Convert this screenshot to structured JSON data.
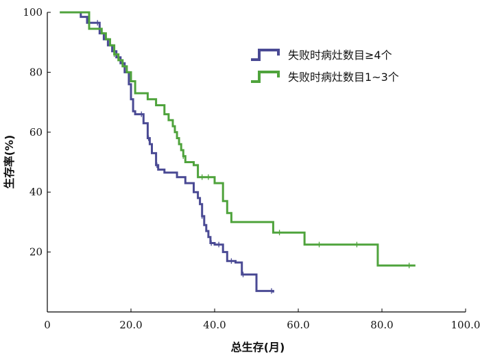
{
  "chart_data": {
    "type": "line",
    "subtype": "kaplan-meier-step",
    "xlabel": "总生存(月)",
    "ylabel": "生存率(%)",
    "xlim": [
      0,
      100
    ],
    "ylim": [
      0,
      100
    ],
    "x_ticks": [
      "0",
      "20.0",
      "40.0",
      "60.0",
      "80.0",
      "100.0"
    ],
    "y_ticks": [
      "20",
      "40",
      "60",
      "80",
      "100"
    ],
    "grid": false,
    "legend_position": "top-right",
    "series": [
      {
        "name": "失败时病灶数目≥4个",
        "color": "#4a4a94",
        "x": [
          3,
          8,
          9.5,
          12.5,
          13.5,
          14.5,
          15.5,
          16.5,
          17.5,
          18.5,
          19.5,
          20,
          20.5,
          21,
          23,
          24,
          24.5,
          25,
          26,
          26.5,
          27,
          27.5,
          28,
          28.5,
          31,
          33,
          35,
          36,
          36.5,
          37,
          37.5,
          38,
          38.5,
          39,
          40,
          42,
          43,
          45,
          46.5,
          50,
          54
        ],
        "y": [
          100,
          98.5,
          96.5,
          93,
          91,
          89,
          87,
          85,
          83,
          80,
          76,
          71,
          67,
          66,
          63,
          58,
          56,
          53,
          49,
          47.5,
          47.5,
          47.5,
          46.5,
          46.5,
          45,
          43,
          40,
          38,
          36,
          32,
          29,
          27,
          25,
          23,
          22.5,
          20,
          17,
          16.5,
          12.5,
          7,
          6.5
        ],
        "censored_x": [
          12,
          22.5,
          24.2,
          26.2,
          37,
          39.2,
          41,
          44,
          46.8,
          53.6
        ]
      },
      {
        "name": "失败时病灶数目1~3个",
        "color": "#4fa33c",
        "x": [
          3,
          10,
          13,
          14,
          15,
          16,
          17,
          18,
          19,
          20,
          21,
          24,
          26,
          28,
          29,
          30,
          30.5,
          31,
          31.5,
          32,
          32.5,
          33,
          35,
          36,
          40,
          42,
          43,
          44,
          54,
          61.5,
          79,
          88
        ],
        "y": [
          100,
          94.5,
          93,
          91,
          89,
          86,
          84,
          82,
          80,
          77,
          73,
          71,
          69,
          66,
          64,
          62,
          60,
          58,
          56,
          54,
          52,
          50,
          49,
          45,
          43,
          37,
          33,
          30,
          26.5,
          22.5,
          15.5,
          15.5
        ],
        "censored_x": [
          16,
          32.5,
          37,
          38.5,
          55.5,
          65,
          74,
          86.5
        ]
      }
    ]
  }
}
